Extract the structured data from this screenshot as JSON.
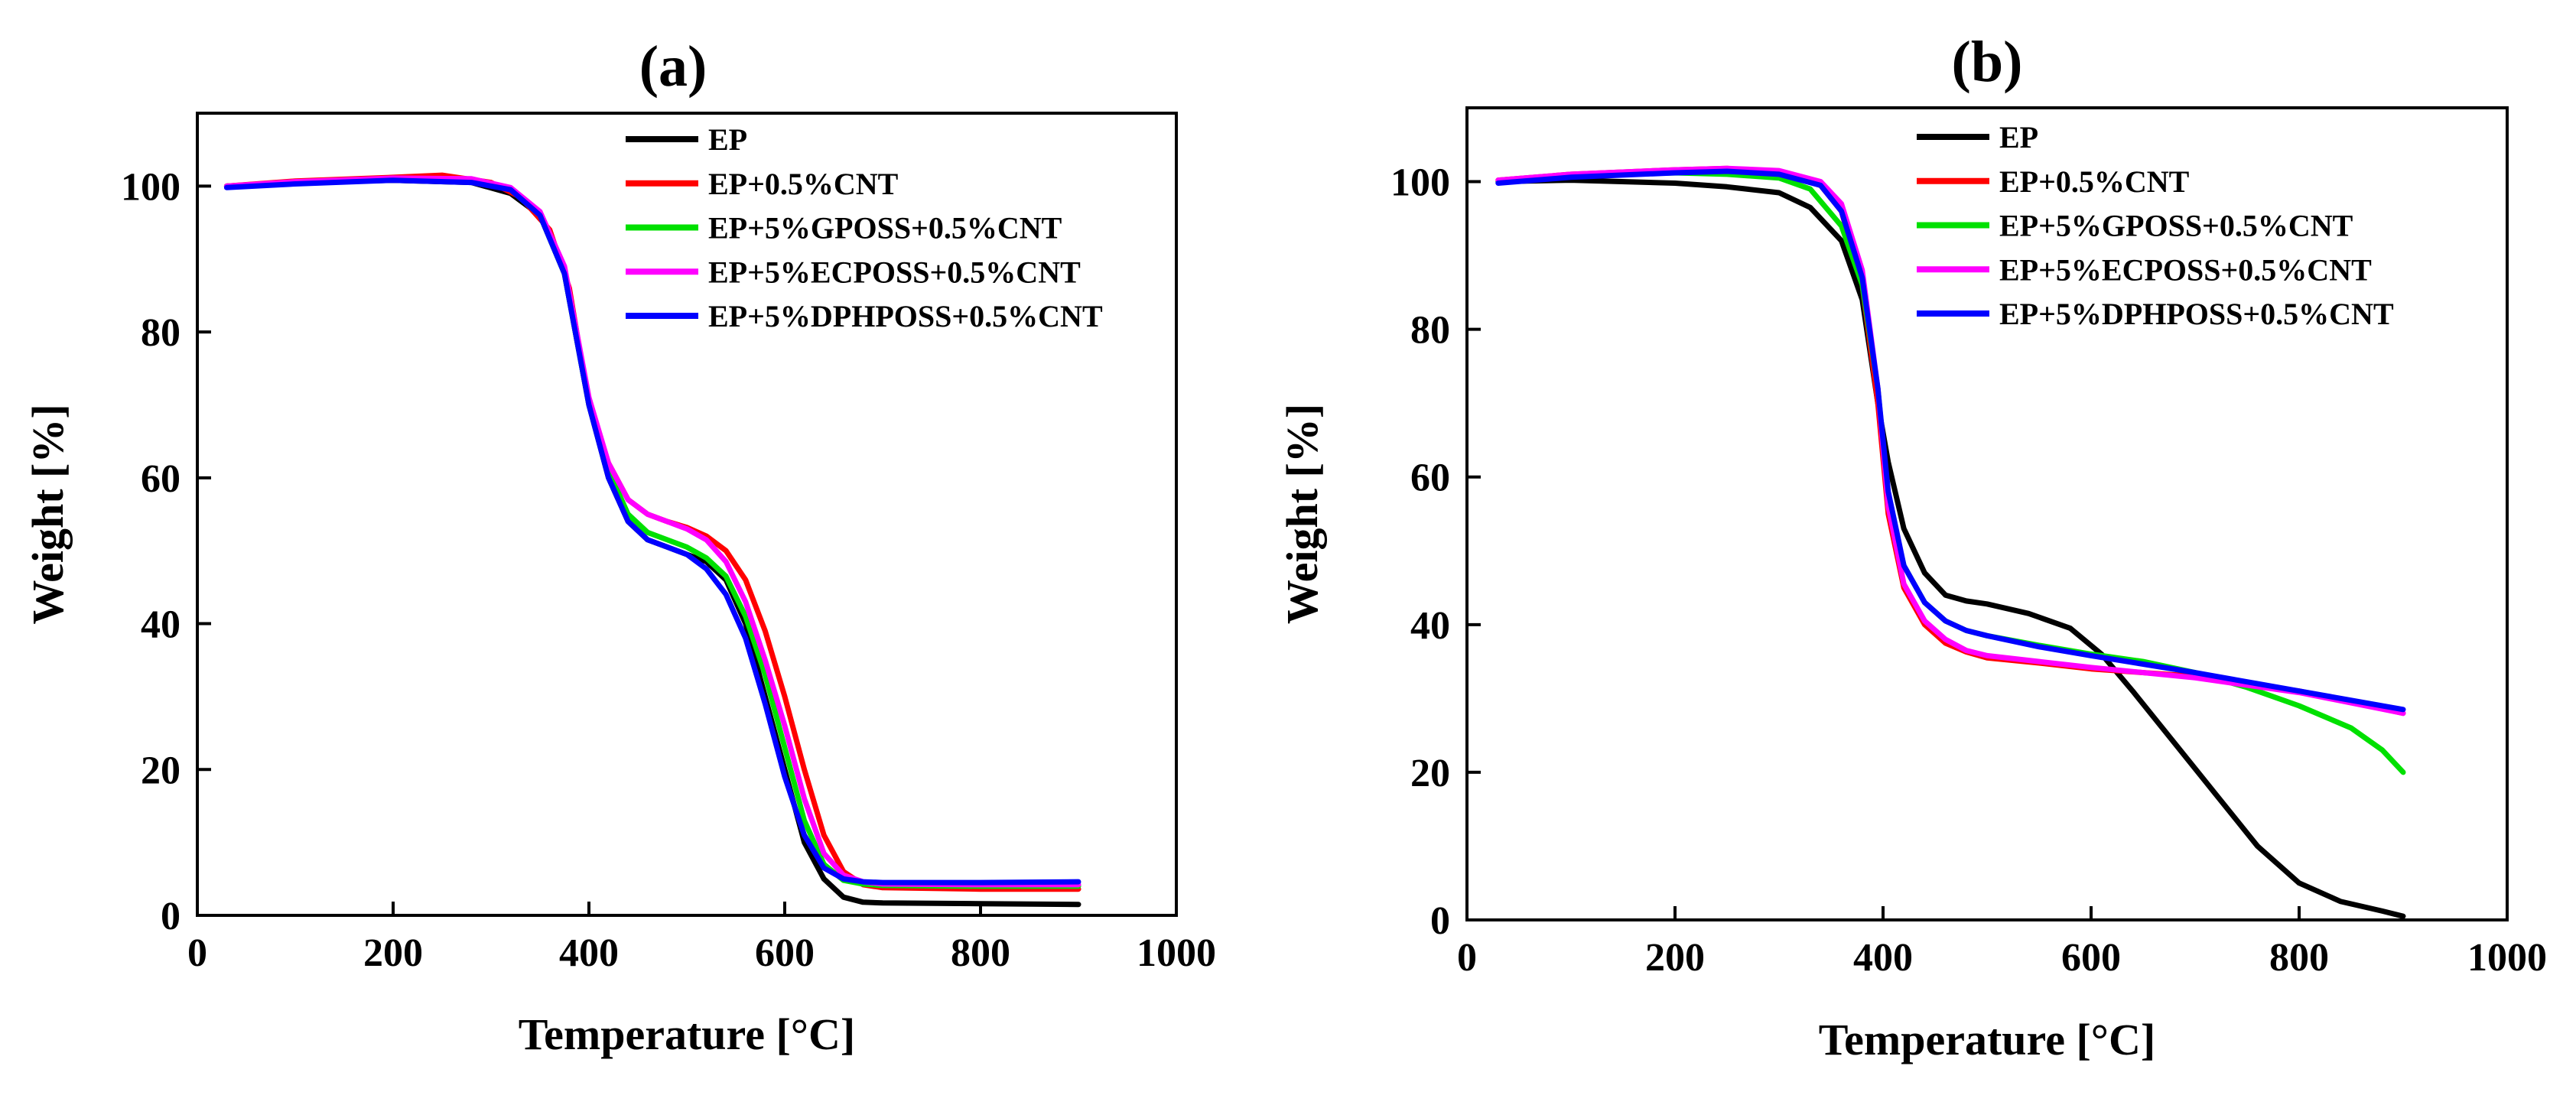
{
  "chart_data": [
    {
      "type": "line",
      "panel_label": "(a)",
      "title": "(a)",
      "xlabel": "Temperature [°C]",
      "ylabel": "Weight [%]",
      "xlim": [
        0,
        1000
      ],
      "ylim": [
        0,
        110
      ],
      "xticks": [
        0,
        200,
        400,
        600,
        800,
        1000
      ],
      "yticks": [
        0,
        20,
        40,
        60,
        80,
        100
      ],
      "x_tick_labels": [
        "0",
        "200",
        "400",
        "600",
        "800",
        "1000"
      ],
      "y_tick_labels": [
        "0",
        "20",
        "40",
        "60",
        "80",
        "100"
      ],
      "grid": false,
      "legend_position": "top-right",
      "series": [
        {
          "name": "EP",
          "color": "#000000",
          "points": [
            [
              30,
              100
            ],
            [
              100,
              100.5
            ],
            [
              200,
              100.8
            ],
            [
              280,
              100.5
            ],
            [
              320,
              99
            ],
            [
              350,
              96
            ],
            [
              375,
              88
            ],
            [
              400,
              70
            ],
            [
              420,
              60
            ],
            [
              440,
              54
            ],
            [
              460,
              51.5
            ],
            [
              480,
              50.5
            ],
            [
              500,
              49.5
            ],
            [
              520,
              48.5
            ],
            [
              540,
              46
            ],
            [
              560,
              40
            ],
            [
              580,
              30
            ],
            [
              600,
              20
            ],
            [
              620,
              10
            ],
            [
              640,
              5
            ],
            [
              660,
              2.5
            ],
            [
              680,
              1.8
            ],
            [
              700,
              1.7
            ],
            [
              800,
              1.6
            ],
            [
              900,
              1.5
            ]
          ]
        },
        {
          "name": "EP+0.5%CNT",
          "color": "#ff0000",
          "points": [
            [
              30,
              100
            ],
            [
              100,
              100.7
            ],
            [
              200,
              101.2
            ],
            [
              250,
              101.5
            ],
            [
              300,
              100.5
            ],
            [
              330,
              98.5
            ],
            [
              360,
              94
            ],
            [
              380,
              86
            ],
            [
              400,
              70
            ],
            [
              420,
              62
            ],
            [
              440,
              57
            ],
            [
              460,
              55
            ],
            [
              480,
              54
            ],
            [
              500,
              53.2
            ],
            [
              520,
              52
            ],
            [
              540,
              50
            ],
            [
              560,
              46
            ],
            [
              580,
              39
            ],
            [
              600,
              30
            ],
            [
              620,
              20
            ],
            [
              640,
              11
            ],
            [
              660,
              6
            ],
            [
              680,
              4.2
            ],
            [
              700,
              3.8
            ],
            [
              800,
              3.6
            ],
            [
              900,
              3.6
            ]
          ]
        },
        {
          "name": "EP+5%GPOSS+0.5%CNT",
          "color": "#00e000",
          "points": [
            [
              30,
              100
            ],
            [
              100,
              100.5
            ],
            [
              200,
              101
            ],
            [
              280,
              100.8
            ],
            [
              320,
              99.5
            ],
            [
              350,
              96
            ],
            [
              375,
              88
            ],
            [
              400,
              70
            ],
            [
              420,
              61
            ],
            [
              440,
              55
            ],
            [
              460,
              52.5
            ],
            [
              480,
              51.5
            ],
            [
              500,
              50.5
            ],
            [
              520,
              49
            ],
            [
              540,
              46.5
            ],
            [
              560,
              41
            ],
            [
              580,
              33
            ],
            [
              600,
              23
            ],
            [
              620,
              13
            ],
            [
              640,
              7
            ],
            [
              660,
              4.8
            ],
            [
              680,
              4.3
            ],
            [
              700,
              4.1
            ],
            [
              800,
              4
            ],
            [
              900,
              4
            ]
          ]
        },
        {
          "name": "EP+5%ECPOSS+0.5%CNT",
          "color": "#ff00ff",
          "points": [
            [
              30,
              100
            ],
            [
              100,
              100.6
            ],
            [
              200,
              101.1
            ],
            [
              280,
              101
            ],
            [
              320,
              99.8
            ],
            [
              350,
              96.5
            ],
            [
              375,
              89
            ],
            [
              400,
              71
            ],
            [
              420,
              62
            ],
            [
              440,
              57
            ],
            [
              460,
              55
            ],
            [
              480,
              54
            ],
            [
              500,
              53
            ],
            [
              520,
              51.5
            ],
            [
              540,
              48.5
            ],
            [
              560,
              43
            ],
            [
              580,
              35
            ],
            [
              600,
              26
            ],
            [
              620,
              16
            ],
            [
              640,
              8.5
            ],
            [
              660,
              5.5
            ],
            [
              680,
              4.6
            ],
            [
              700,
              4.3
            ],
            [
              800,
              4.2
            ],
            [
              900,
              4.2
            ]
          ]
        },
        {
          "name": "EP+5%DPHPOSS+0.5%CNT",
          "color": "#0000ff",
          "points": [
            [
              30,
              99.8
            ],
            [
              100,
              100.3
            ],
            [
              200,
              100.8
            ],
            [
              280,
              100.5
            ],
            [
              320,
              99.5
            ],
            [
              350,
              96
            ],
            [
              375,
              88
            ],
            [
              400,
              70
            ],
            [
              420,
              60
            ],
            [
              440,
              54
            ],
            [
              460,
              51.5
            ],
            [
              480,
              50.5
            ],
            [
              500,
              49.5
            ],
            [
              520,
              47.5
            ],
            [
              540,
              44
            ],
            [
              560,
              38
            ],
            [
              580,
              29
            ],
            [
              600,
              19
            ],
            [
              620,
              11
            ],
            [
              640,
              6.5
            ],
            [
              660,
              5
            ],
            [
              680,
              4.6
            ],
            [
              700,
              4.5
            ],
            [
              800,
              4.5
            ],
            [
              900,
              4.6
            ]
          ]
        }
      ]
    },
    {
      "type": "line",
      "panel_label": "(b)",
      "title": "(b)",
      "xlabel": "Temperature [°C]",
      "ylabel": "Weight [%]",
      "xlim": [
        0,
        1000
      ],
      "ylim": [
        0,
        110
      ],
      "xticks": [
        0,
        200,
        400,
        600,
        800,
        1000
      ],
      "yticks": [
        0,
        20,
        40,
        60,
        80,
        100
      ],
      "x_tick_labels": [
        "0",
        "200",
        "400",
        "600",
        "800",
        "1000"
      ],
      "y_tick_labels": [
        "0",
        "20",
        "40",
        "60",
        "80",
        "100"
      ],
      "grid": false,
      "legend_position": "top-right",
      "series": [
        {
          "name": "EP",
          "color": "#000000",
          "points": [
            [
              30,
              100
            ],
            [
              100,
              100.2
            ],
            [
              200,
              99.8
            ],
            [
              250,
              99.3
            ],
            [
              300,
              98.5
            ],
            [
              330,
              96.5
            ],
            [
              360,
              92
            ],
            [
              380,
              84
            ],
            [
              395,
              70
            ],
            [
              405,
              62
            ],
            [
              420,
              53
            ],
            [
              440,
              47
            ],
            [
              460,
              44
            ],
            [
              480,
              43.2
            ],
            [
              500,
              42.8
            ],
            [
              540,
              41.5
            ],
            [
              580,
              39.5
            ],
            [
              610,
              36
            ],
            [
              640,
              31
            ],
            [
              680,
              24
            ],
            [
              720,
              17
            ],
            [
              760,
              10
            ],
            [
              800,
              5
            ],
            [
              840,
              2.5
            ],
            [
              880,
              1.2
            ],
            [
              900,
              0.5
            ]
          ]
        },
        {
          "name": "EP+0.5%CNT",
          "color": "#ff0000",
          "points": [
            [
              30,
              100.2
            ],
            [
              100,
              101
            ],
            [
              200,
              101.6
            ],
            [
              250,
              101.8
            ],
            [
              300,
              101.2
            ],
            [
              340,
              99.5
            ],
            [
              360,
              96
            ],
            [
              380,
              86
            ],
            [
              395,
              70
            ],
            [
              405,
              55
            ],
            [
              420,
              45
            ],
            [
              440,
              40
            ],
            [
              460,
              37.5
            ],
            [
              480,
              36.3
            ],
            [
              500,
              35.5
            ],
            [
              550,
              34.8
            ],
            [
              600,
              34
            ],
            [
              700,
              33
            ],
            [
              800,
              31
            ],
            [
              900,
              28
            ]
          ]
        },
        {
          "name": "EP+5%GPOSS+0.5%CNT",
          "color": "#00e000",
          "points": [
            [
              30,
              100
            ],
            [
              100,
              100.8
            ],
            [
              200,
              101.2
            ],
            [
              250,
              101
            ],
            [
              300,
              100.5
            ],
            [
              330,
              99
            ],
            [
              360,
              94
            ],
            [
              380,
              86
            ],
            [
              395,
              72
            ],
            [
              405,
              57
            ],
            [
              420,
              48
            ],
            [
              440,
              43
            ],
            [
              460,
              40.5
            ],
            [
              480,
              39.2
            ],
            [
              500,
              38.5
            ],
            [
              550,
              37.2
            ],
            [
              600,
              36
            ],
            [
              650,
              35
            ],
            [
              700,
              33.5
            ],
            [
              750,
              31.5
            ],
            [
              800,
              29
            ],
            [
              850,
              26
            ],
            [
              880,
              23
            ],
            [
              900,
              20
            ]
          ]
        },
        {
          "name": "EP+5%ECPOSS+0.5%CNT",
          "color": "#ff00ff",
          "points": [
            [
              30,
              100.2
            ],
            [
              100,
              101
            ],
            [
              200,
              101.6
            ],
            [
              250,
              101.8
            ],
            [
              300,
              101.5
            ],
            [
              340,
              100
            ],
            [
              360,
              97
            ],
            [
              380,
              88
            ],
            [
              395,
              72
            ],
            [
              405,
              56
            ],
            [
              420,
              45.5
            ],
            [
              440,
              40.5
            ],
            [
              460,
              38
            ],
            [
              480,
              36.5
            ],
            [
              500,
              35.8
            ],
            [
              550,
              35
            ],
            [
              600,
              34.2
            ],
            [
              700,
              32.8
            ],
            [
              800,
              30.8
            ],
            [
              900,
              28
            ]
          ]
        },
        {
          "name": "EP+5%DPHPOSS+0.5%CNT",
          "color": "#0000ff",
          "points": [
            [
              30,
              99.8
            ],
            [
              100,
              100.6
            ],
            [
              200,
              101.2
            ],
            [
              250,
              101.4
            ],
            [
              300,
              101
            ],
            [
              340,
              99.5
            ],
            [
              360,
              96
            ],
            [
              380,
              87
            ],
            [
              395,
              72
            ],
            [
              405,
              58
            ],
            [
              420,
              48
            ],
            [
              440,
              43
            ],
            [
              460,
              40.5
            ],
            [
              480,
              39.2
            ],
            [
              500,
              38.5
            ],
            [
              550,
              37
            ],
            [
              600,
              35.8
            ],
            [
              700,
              33.5
            ],
            [
              800,
              31
            ],
            [
              900,
              28.5
            ]
          ]
        }
      ]
    }
  ]
}
